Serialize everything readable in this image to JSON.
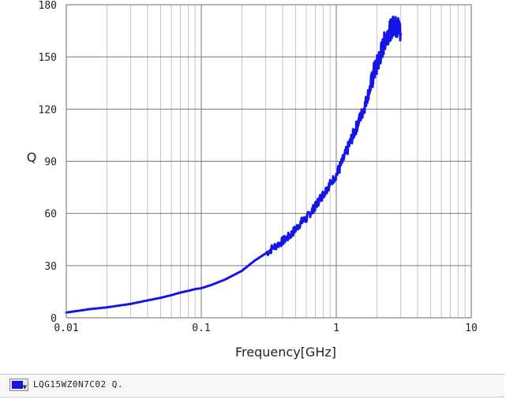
{
  "chart_data": {
    "type": "line",
    "x_scale": "log",
    "xlim": [
      0.01,
      10
    ],
    "ylim": [
      0,
      180
    ],
    "xlabel": "Frequency[GHz]",
    "ylabel": "Q",
    "grid": true,
    "x_ticks": [
      {
        "value": 0.01,
        "label": "0.01"
      },
      {
        "value": 0.1,
        "label": "0.1"
      },
      {
        "value": 1,
        "label": "1"
      },
      {
        "value": 10,
        "label": "10"
      }
    ],
    "y_ticks": [
      {
        "value": 0,
        "label": "0"
      },
      {
        "value": 30,
        "label": "30"
      },
      {
        "value": 60,
        "label": "60"
      },
      {
        "value": 90,
        "label": "90"
      },
      {
        "value": 120,
        "label": "120"
      },
      {
        "value": 150,
        "label": "150"
      },
      {
        "value": 180,
        "label": "180"
      }
    ],
    "series": [
      {
        "name": "LQG15WZ0N7C02 Q.",
        "color": "#1515e8",
        "x": [
          0.01,
          0.015,
          0.02,
          0.03,
          0.04,
          0.05,
          0.06,
          0.07,
          0.08,
          0.09,
          0.1,
          0.12,
          0.15,
          0.2,
          0.25,
          0.3,
          0.35,
          0.4,
          0.45,
          0.5,
          0.55,
          0.6,
          0.65,
          0.7,
          0.75,
          0.8,
          0.85,
          0.9,
          1.0,
          1.1,
          1.2,
          1.3,
          1.4,
          1.5,
          1.6,
          1.7,
          1.8,
          1.9,
          2.0,
          2.1,
          2.2,
          2.3,
          2.4,
          2.5,
          2.6,
          2.7,
          2.8,
          2.9,
          3.0
        ],
        "y": [
          3,
          5,
          6,
          8,
          10,
          11.5,
          13,
          14.5,
          15.5,
          16.5,
          17,
          19,
          22,
          27,
          33,
          37,
          41,
          44,
          47,
          51,
          55,
          57,
          61,
          64,
          68,
          71,
          74,
          77,
          82,
          89,
          96,
          103,
          109,
          115,
          120,
          127,
          133,
          141,
          145,
          150,
          155,
          160,
          163,
          165,
          167,
          169,
          166,
          168,
          163
        ]
      }
    ]
  },
  "legend": {
    "items": [
      {
        "label": "LQG15WZ0N7C02 Q.",
        "color": "#1515e8"
      }
    ]
  }
}
